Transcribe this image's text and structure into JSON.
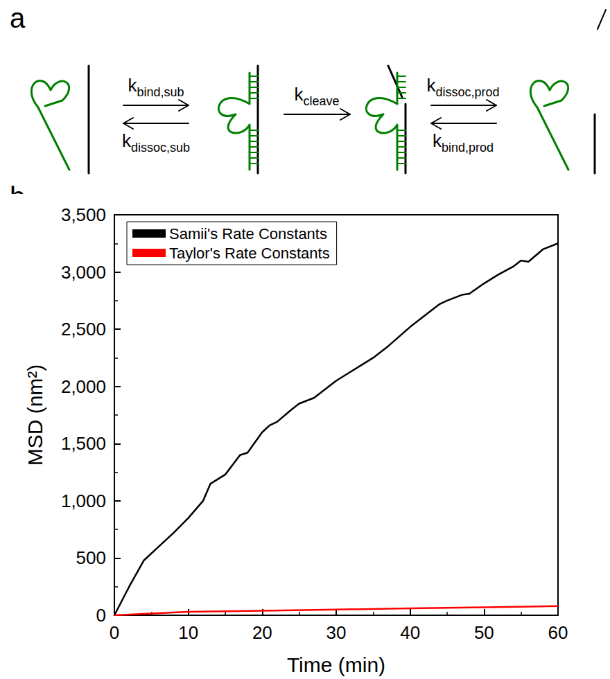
{
  "diagram": {
    "label": "a",
    "steps": [
      {
        "top": {
          "symbol": "k",
          "subscript": "bind,sub"
        },
        "bottom": {
          "symbol": "k",
          "subscript": "dissoc,sub"
        }
      },
      {
        "top": {
          "symbol": "k",
          "subscript": "cleave"
        }
      },
      {
        "top": {
          "symbol": "k",
          "subscript": "dissoc,prod"
        },
        "bottom": {
          "symbol": "k",
          "subscript": "bind,prod"
        }
      }
    ]
  },
  "chart_data": {
    "label": "b",
    "type": "line",
    "x_label": "Time (min)",
    "y_label": "MSD (nm²)",
    "series": [
      {
        "name": "Samii's Rate Constants",
        "color": "#000000",
        "x": [
          0,
          2,
          4,
          6,
          8,
          10,
          12,
          13,
          15,
          17,
          18,
          20,
          21,
          22,
          24,
          25,
          27,
          30,
          32,
          35,
          37,
          40,
          42,
          44,
          45,
          47,
          48,
          50,
          52,
          54,
          55,
          56,
          58,
          60
        ],
        "values": [
          0,
          250,
          480,
          600,
          720,
          850,
          1000,
          1150,
          1230,
          1400,
          1420,
          1600,
          1660,
          1690,
          1800,
          1850,
          1900,
          2050,
          2130,
          2250,
          2350,
          2520,
          2620,
          2720,
          2750,
          2800,
          2810,
          2900,
          2980,
          3050,
          3100,
          3090,
          3200,
          3250
        ]
      },
      {
        "name": "Taylor's Rate Constants",
        "color": "#ff0000",
        "x": [
          0,
          5,
          10,
          20,
          30,
          40,
          50,
          60
        ],
        "values": [
          0,
          15,
          30,
          40,
          50,
          60,
          70,
          80
        ]
      }
    ],
    "xlim": [
      0,
      60
    ],
    "xticks": [
      0,
      10,
      20,
      30,
      40,
      50,
      60
    ],
    "ylim": [
      0,
      3500
    ],
    "yticks": [
      0,
      500,
      1000,
      1500,
      2000,
      2500,
      3000,
      3500
    ],
    "legend": "upper left",
    "grid": false
  }
}
